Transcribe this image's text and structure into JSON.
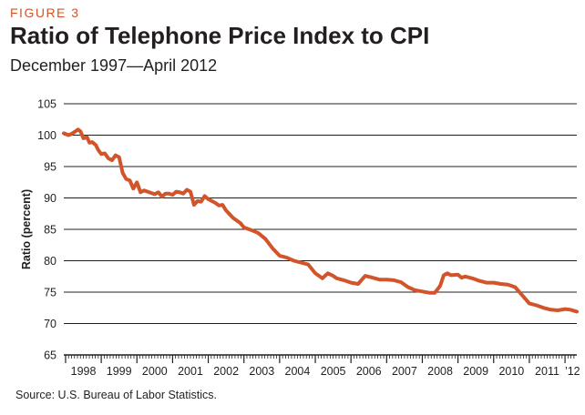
{
  "header": {
    "figure_label": "FIGURE 3",
    "title": "Ratio of Telephone Price Index to CPI",
    "subtitle": "December 1997—April 2012"
  },
  "footer": {
    "source": "Source: U.S. Bureau of Labor Statistics."
  },
  "colors": {
    "line": "#d2542a",
    "grid": "#231f20",
    "accent": "#d2542a"
  },
  "chart_data": {
    "type": "line",
    "title": "Ratio of Telephone Price Index to CPI",
    "subtitle": "December 1997—April 2012",
    "xlabel": "",
    "ylabel": "Ratio (percent)",
    "ylim": [
      65,
      105
    ],
    "yticks": [
      65,
      70,
      75,
      80,
      85,
      90,
      95,
      100,
      105
    ],
    "grid": true,
    "legend": "none",
    "xlim": [
      1997.95,
      2012.33
    ],
    "x_tick_labels": [
      {
        "label": "1998",
        "year": 1998
      },
      {
        "label": "1999",
        "year": 1999
      },
      {
        "label": "2000",
        "year": 2000
      },
      {
        "label": "2001",
        "year": 2001
      },
      {
        "label": "2002",
        "year": 2002
      },
      {
        "label": "2003",
        "year": 2003
      },
      {
        "label": "2004",
        "year": 2004
      },
      {
        "label": "2005",
        "year": 2005
      },
      {
        "label": "2006",
        "year": 2006
      },
      {
        "label": "2007",
        "year": 2007
      },
      {
        "label": "2008",
        "year": 2008
      },
      {
        "label": "2009",
        "year": 2009
      },
      {
        "label": "2010",
        "year": 2010
      },
      {
        "label": "2011",
        "year": 2011
      },
      {
        "label": "’12",
        "year": 2012
      }
    ],
    "series": [
      {
        "name": "Telephone Price Index / CPI",
        "x": [
          1997.95,
          1998.08,
          1998.17,
          1998.25,
          1998.35,
          1998.42,
          1998.5,
          1998.6,
          1998.67,
          1998.75,
          1998.85,
          1998.92,
          1999.0,
          1999.1,
          1999.2,
          1999.3,
          1999.4,
          1999.5,
          1999.6,
          1999.7,
          1999.8,
          1999.9,
          2000.0,
          2000.1,
          2000.2,
          2000.3,
          2000.4,
          2000.5,
          2000.6,
          2000.7,
          2000.8,
          2000.9,
          2001.0,
          2001.1,
          2001.2,
          2001.3,
          2001.4,
          2001.5,
          2001.6,
          2001.7,
          2001.8,
          2001.9,
          2002.0,
          2002.1,
          2002.2,
          2002.3,
          2002.4,
          2002.5,
          2002.7,
          2002.9,
          2003.0,
          2003.2,
          2003.4,
          2003.6,
          2003.8,
          2004.0,
          2004.2,
          2004.4,
          2004.6,
          2004.8,
          2005.0,
          2005.2,
          2005.35,
          2005.5,
          2005.6,
          2005.8,
          2006.0,
          2006.2,
          2006.4,
          2006.6,
          2006.8,
          2007.0,
          2007.2,
          2007.4,
          2007.6,
          2007.8,
          2008.0,
          2008.2,
          2008.35,
          2008.5,
          2008.6,
          2008.7,
          2008.8,
          2009.0,
          2009.1,
          2009.2,
          2009.4,
          2009.6,
          2009.8,
          2010.0,
          2010.2,
          2010.4,
          2010.6,
          2010.8,
          2011.0,
          2011.2,
          2011.4,
          2011.6,
          2011.8,
          2012.0,
          2012.15,
          2012.33
        ],
        "values": [
          100.3,
          100.0,
          100.2,
          100.5,
          100.9,
          100.6,
          99.5,
          99.7,
          98.8,
          98.9,
          98.4,
          97.6,
          97.0,
          97.1,
          96.3,
          96.0,
          96.8,
          96.5,
          94.0,
          93.0,
          92.8,
          91.5,
          92.5,
          90.9,
          91.2,
          91.0,
          90.8,
          90.6,
          90.9,
          90.2,
          90.7,
          90.7,
          90.5,
          91.0,
          90.9,
          90.7,
          91.3,
          91.0,
          88.9,
          89.5,
          89.4,
          90.3,
          89.8,
          89.5,
          89.2,
          88.8,
          88.9,
          88.0,
          86.8,
          86.0,
          85.3,
          84.9,
          84.4,
          83.5,
          82.0,
          80.8,
          80.5,
          80.0,
          79.7,
          79.4,
          78.0,
          77.2,
          78.0,
          77.6,
          77.2,
          76.9,
          76.5,
          76.3,
          77.6,
          77.3,
          77.0,
          77.0,
          76.9,
          76.6,
          75.8,
          75.3,
          75.1,
          74.9,
          74.9,
          76.0,
          77.7,
          78.0,
          77.7,
          77.8,
          77.3,
          77.5,
          77.2,
          76.8,
          76.5,
          76.5,
          76.3,
          76.2,
          75.8,
          74.5,
          73.2,
          72.9,
          72.5,
          72.2,
          72.1,
          72.3,
          72.2,
          71.9
        ]
      }
    ]
  }
}
